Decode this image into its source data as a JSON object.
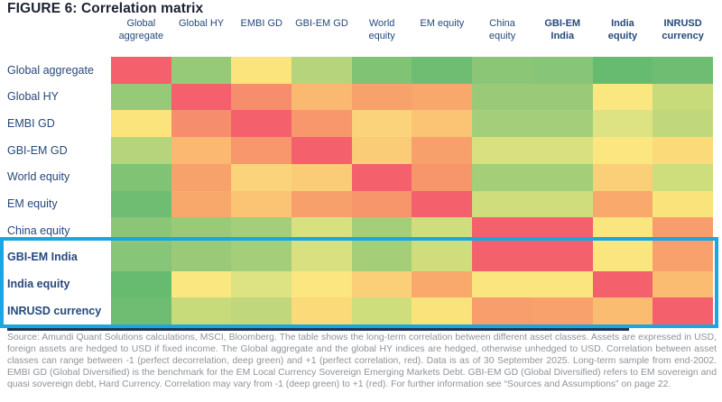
{
  "title": "FIGURE 6: Correlation matrix",
  "chart_data": {
    "type": "heatmap",
    "title": "FIGURE 6: Correlation matrix",
    "row_labels": [
      "Global aggregate",
      "Global HY",
      "EMBI GD",
      "GBI-EM GD",
      "World equity",
      "EM equity",
      "China equity",
      "GBI-EM India",
      "India equity",
      "INRUSD currency"
    ],
    "col_labels": [
      "Global\naggregate",
      "Global HY",
      "EMBI GD",
      "GBI-EM GD",
      "World\nequity",
      "EM equity",
      "China\nequity",
      "GBI-EM\nIndia",
      "India\nequity",
      "INRUSD\ncurrency"
    ],
    "bold_from_index": 7,
    "cell_colors": [
      [
        "#f4606c",
        "#97ca78",
        "#fbe47c",
        "#b5d47c",
        "#80c375",
        "#6fbd72",
        "#8bc677",
        "#87c578",
        "#66bb70",
        "#6ebd72"
      ],
      [
        "#97ca78",
        "#f4606c",
        "#f68e6e",
        "#fab871",
        "#f8a26b",
        "#f9a86c",
        "#9aca78",
        "#9aca78",
        "#fbe77f",
        "#c8db7b"
      ],
      [
        "#fbe47c",
        "#f68e6e",
        "#f4606c",
        "#f8976b",
        "#fbd37a",
        "#fac474",
        "#a4ce79",
        "#a4ce79",
        "#dde382",
        "#c0d87b"
      ],
      [
        "#b5d47c",
        "#fab871",
        "#f8976b",
        "#f4606c",
        "#fbcc77",
        "#f8a06c",
        "#d8e080",
        "#d8e080",
        "#fbe680",
        "#fbda7a"
      ],
      [
        "#80c375",
        "#f8a26b",
        "#fbd37a",
        "#fbcc77",
        "#f4606c",
        "#f8966b",
        "#a5ce79",
        "#a5ce79",
        "#fbcf78",
        "#cfde7d"
      ],
      [
        "#6fbd72",
        "#f9a86c",
        "#fac474",
        "#f8a06c",
        "#f8966b",
        "#f4606c",
        "#cfdd7d",
        "#cfdd7d",
        "#f9a96c",
        "#fbe37c"
      ],
      [
        "#8bc677",
        "#9aca78",
        "#a4ce79",
        "#d8e080",
        "#a5ce79",
        "#cfdd7d",
        "#f4606c",
        "#f4606c",
        "#fbe57e",
        "#f89d6c"
      ],
      [
        "#87c578",
        "#9aca78",
        "#a4ce79",
        "#d8e080",
        "#a5ce79",
        "#cfdd7d",
        "#f4606c",
        "#f4606c",
        "#fbe57e",
        "#f9a16c"
      ],
      [
        "#66bb70",
        "#fbe77f",
        "#dde382",
        "#fbe680",
        "#fbcf78",
        "#f9a96c",
        "#fbe57e",
        "#fbe57e",
        "#f4606c",
        "#fabc71"
      ],
      [
        "#6ebd72",
        "#c8db7b",
        "#c0d87b",
        "#fbda7a",
        "#cfde7d",
        "#fbe37c",
        "#f89d6c",
        "#f9a16c",
        "#fabc71",
        "#f4606c"
      ]
    ],
    "scale": {
      "min": -1,
      "max": 1,
      "min_label": "-1 (perfect decorrelation, deep green)",
      "max_label": "+1 (perfect correlation, red)",
      "diagonal_color": "#f4606c"
    },
    "highlight": {
      "rows": [
        "GBI-EM India",
        "India equity",
        "INRUSD currency"
      ],
      "border_color": "#18a7e1"
    },
    "legend_position": "none",
    "grid": false
  },
  "source_text": "Source: Amundi Quant Solutions calculations, MSCI, Bloomberg. The table shows the long-term correlation between different asset classes. Assets are expressed in USD, foreign assets are hedged to USD if fixed income. The Global aggregate and the global HY indices are hedged, otherwise unhedged to USD. Correlation between asset classes can range between -1 (perfect decorrelation, deep green) and +1 (perfect correlation, red). Data is as of 30 September 2025. Long-term sample from end-2002. EMBI GD (Global Diversified) is the benchmark for the EM Local Currency Sovereign Emerging Markets Debt. GBI-EM GD (Global Diversified) refers to EM sovereign and quasi sovereign debt, Hard Currency. Correlation may vary from -1 (deep green) to +1 (red). For further information see “Sources and Assumptions” on page 22."
}
